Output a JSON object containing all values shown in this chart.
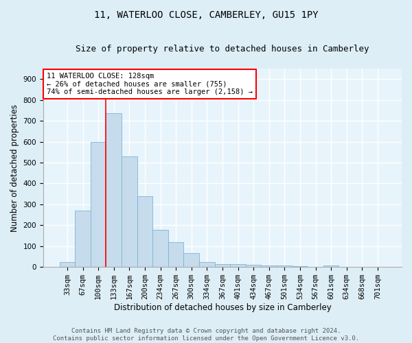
{
  "title": "11, WATERLOO CLOSE, CAMBERLEY, GU15 1PY",
  "subtitle": "Size of property relative to detached houses in Camberley",
  "xlabel": "Distribution of detached houses by size in Camberley",
  "ylabel": "Number of detached properties",
  "bar_labels": [
    "33sqm",
    "67sqm",
    "100sqm",
    "133sqm",
    "167sqm",
    "200sqm",
    "234sqm",
    "267sqm",
    "300sqm",
    "334sqm",
    "367sqm",
    "401sqm",
    "434sqm",
    "467sqm",
    "501sqm",
    "534sqm",
    "567sqm",
    "601sqm",
    "634sqm",
    "668sqm",
    "701sqm"
  ],
  "bar_values": [
    25,
    270,
    597,
    735,
    530,
    340,
    178,
    118,
    67,
    25,
    14,
    15,
    9,
    8,
    8,
    5,
    0,
    6,
    0,
    0,
    0
  ],
  "bar_color": "#c6dcec",
  "bar_edgecolor": "#7fb3d3",
  "vline_color": "red",
  "vline_index": 2.5,
  "annotation_text": "11 WATERLOO CLOSE: 128sqm\n← 26% of detached houses are smaller (755)\n74% of semi-detached houses are larger (2,158) →",
  "annotation_box_color": "white",
  "annotation_box_edgecolor": "red",
  "ylim": [
    0,
    950
  ],
  "yticks": [
    0,
    100,
    200,
    300,
    400,
    500,
    600,
    700,
    800,
    900
  ],
  "footer_line1": "Contains HM Land Registry data © Crown copyright and database right 2024.",
  "footer_line2": "Contains public sector information licensed under the Open Government Licence v3.0.",
  "bg_color": "#ddeef6",
  "plot_bg_color": "#e8f4fb",
  "grid_color": "white",
  "title_fontsize": 10,
  "subtitle_fontsize": 9,
  "axis_label_fontsize": 8.5,
  "tick_fontsize": 7.5,
  "annotation_fontsize": 7.5,
  "footer_fontsize": 6.5
}
